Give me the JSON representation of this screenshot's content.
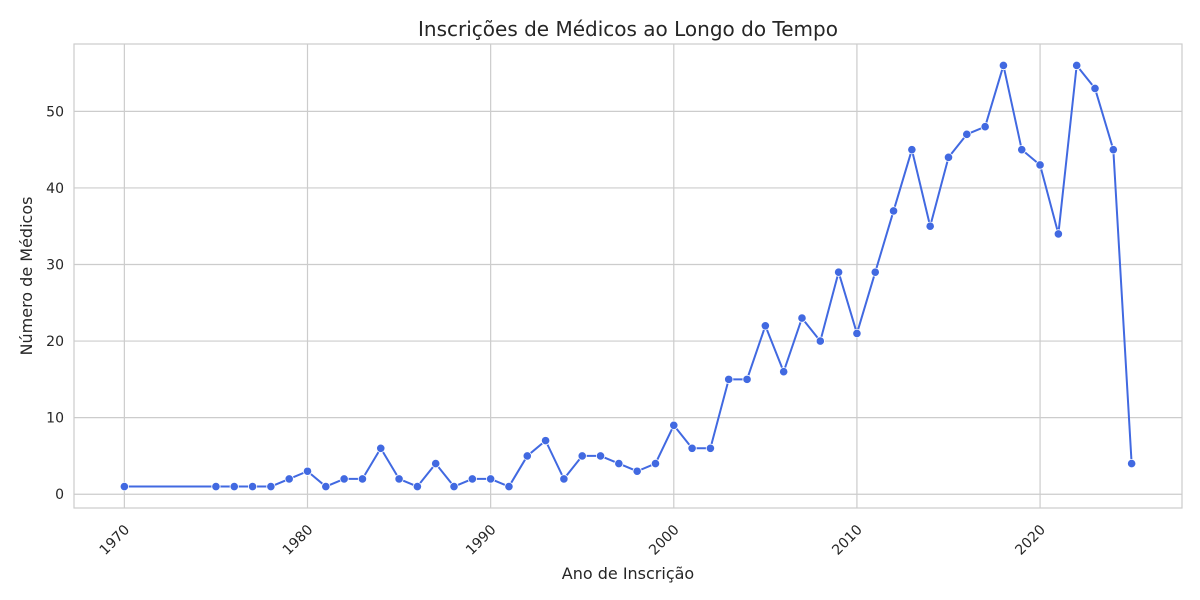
{
  "chart_data": {
    "type": "line",
    "title": "Inscrições de Médicos ao Longo do Tempo",
    "xlabel": "Ano de Inscrição",
    "ylabel": "Número de Médicos",
    "xlim": [
      1967.25,
      2027.75
    ],
    "ylim": [
      -1.8,
      58.8
    ],
    "xticks": [
      1970,
      1980,
      1990,
      2000,
      2010,
      2020
    ],
    "xtick_labels": [
      "1970",
      "1980",
      "1990",
      "2000",
      "2010",
      "2020"
    ],
    "yticks": [
      0,
      10,
      20,
      30,
      40,
      50
    ],
    "ytick_labels": [
      "0",
      "10",
      "20",
      "30",
      "40",
      "50"
    ],
    "grid": true,
    "color": "#4169e1",
    "series": [
      {
        "x": [
          1970,
          1975,
          1976,
          1977,
          1978,
          1979,
          1980,
          1981,
          1982,
          1983,
          1984,
          1985,
          1986,
          1987,
          1988,
          1989,
          1990,
          1991,
          1992,
          1993,
          1994,
          1995,
          1996,
          1997,
          1998,
          1999,
          2000,
          2001,
          2002,
          2003,
          2004,
          2005,
          2006,
          2007,
          2008,
          2009,
          2010,
          2011,
          2012,
          2013,
          2014,
          2015,
          2016,
          2017,
          2018,
          2019,
          2020,
          2021,
          2022,
          2023,
          2024,
          2025
        ],
        "values": [
          1,
          1,
          1,
          1,
          1,
          2,
          3,
          1,
          2,
          2,
          6,
          2,
          1,
          4,
          1,
          2,
          2,
          1,
          5,
          7,
          2,
          5,
          5,
          4,
          3,
          4,
          9,
          6,
          6,
          15,
          15,
          22,
          16,
          23,
          20,
          29,
          21,
          29,
          37,
          45,
          35,
          44,
          47,
          48,
          56,
          45,
          43,
          34,
          56,
          53,
          45,
          4
        ]
      }
    ]
  }
}
